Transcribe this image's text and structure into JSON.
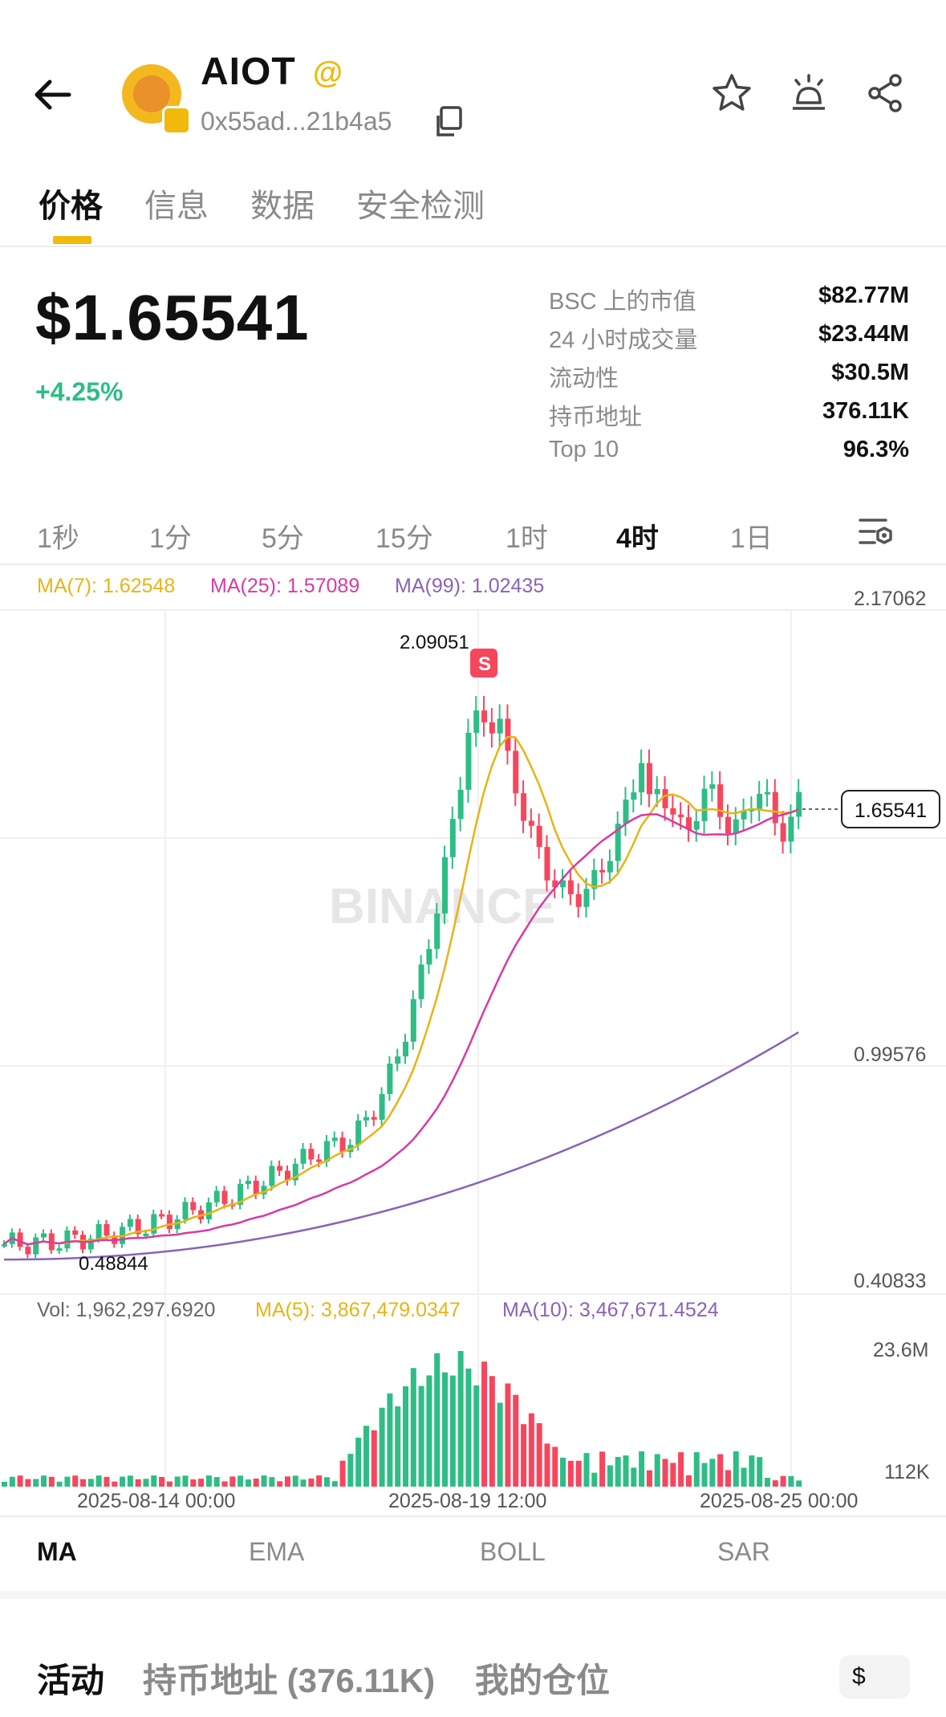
{
  "header": {
    "token_name": "AIOT",
    "at_symbol": "@",
    "address": "0x55ad...21b4a5"
  },
  "tabs": [
    "价格",
    "信息",
    "数据",
    "安全检测"
  ],
  "price": {
    "value": "$1.65541",
    "change": "+4.25%"
  },
  "stats": [
    {
      "label": "BSC 上的市值",
      "value": "$82.77M"
    },
    {
      "label": "24 小时成交量",
      "value": "$23.44M"
    },
    {
      "label": "流动性",
      "value": "$30.5M"
    },
    {
      "label": "持币地址",
      "value": "376.11K"
    },
    {
      "label": "Top 10",
      "value": "96.3%"
    }
  ],
  "intervals": [
    "1秒",
    "1分",
    "5分",
    "15分",
    "1时",
    "4时",
    "1日"
  ],
  "active_interval": "4时",
  "ma_legend": {
    "ma7": "MA(7): 1.62548",
    "ma25": "MA(25): 1.57089",
    "ma99": "MA(99): 1.02435"
  },
  "price_axis": {
    "top": "2.17062",
    "mid": "0.99576",
    "bottom": "0.40833",
    "current": "1.65541",
    "high_label": "2.09051",
    "low_label": "0.48844",
    "sell_marker": "S",
    "watermark": "BINANCE"
  },
  "volume_legend": {
    "vol": "Vol: 1,962,297.6920",
    "ma5": "MA(5): 3,867,479.0347",
    "ma10": "MA(10): 3,467,671.4524"
  },
  "volume_axis": {
    "top": "23.6M",
    "bottom": "112K"
  },
  "time_axis": [
    "2025-08-14 00:00",
    "2025-08-19 12:00",
    "2025-08-25 00:00"
  ],
  "indicators": [
    "MA",
    "EMA",
    "BOLL",
    "SAR"
  ],
  "active_indicator": "MA",
  "bottom_tabs": [
    "活动",
    "持币地址 (376.11K)",
    "我的仓位"
  ],
  "currency_button": "$",
  "colors": {
    "up": "#2ebd85",
    "down": "#f6465d",
    "ma7": "#e7b416",
    "ma25": "#d63ba5",
    "ma99": "#8a62b8",
    "accent": "#f0b90b"
  },
  "chart_data": {
    "type": "candlestick",
    "price_axis_range": [
      0.40833,
      2.17062
    ],
    "high": 2.09051,
    "low": 0.48844,
    "current": 1.65541,
    "volume_axis": [
      "112K",
      "23.6M"
    ]
  }
}
